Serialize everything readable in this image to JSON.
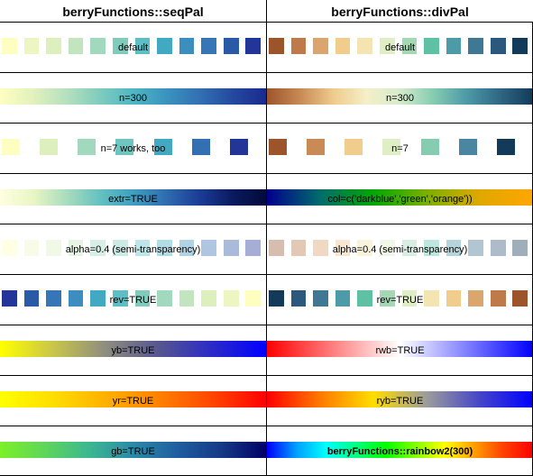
{
  "columns": [
    {
      "title": "berryFunctions::seqPal",
      "rows": [
        {
          "label": "default",
          "kind": "squares",
          "colors": [
            "#FEFEC0",
            "#EDF6C3",
            "#DCEFBD",
            "#C2E5BF",
            "#A2D9BE",
            "#7FCCBD",
            "#5DBFC5",
            "#42A9C3",
            "#3B8EBD",
            "#3675B6",
            "#2A5AA6",
            "#233598"
          ]
        },
        {
          "label": "n=300",
          "kind": "gradient",
          "colors": [
            "#FEFEC0",
            "#E2F1BE",
            "#B5E0BE",
            "#7FCCBD",
            "#4EB7C4",
            "#3A93BF",
            "#3270B3",
            "#24499F",
            "#1A2A8E"
          ]
        },
        {
          "label": "n=7 works, too",
          "kind": "squares",
          "colors": [
            "#FEFEC0",
            "#DCEFBD",
            "#A2D9BE",
            "#6DC6C0",
            "#42A9C3",
            "#3270B3",
            "#233598"
          ]
        },
        {
          "label": "extr=TRUE",
          "kind": "gradient",
          "colors": [
            "#FEFEE0",
            "#E9F6C4",
            "#A9DCBE",
            "#64C2C0",
            "#3E9FC1",
            "#2F6CB0",
            "#1B3C96",
            "#0A1A5F",
            "#020A3A"
          ]
        },
        {
          "label": "alpha=0.4 (semi-transparency)",
          "kind": "squares",
          "colors": [
            "#FFFFE6",
            "#F8FBE7",
            "#F1F8E5",
            "#E5F4E5",
            "#D7EFE5",
            "#CCEAE5",
            "#BEE5E7",
            "#B3DCE7",
            "#B0D2E4",
            "#AEC6E2",
            "#A9BADB",
            "#A6AED6"
          ]
        },
        {
          "label": "rev=TRUE",
          "kind": "squares",
          "colors": [
            "#233598",
            "#2A5AA6",
            "#3675B6",
            "#3B8EBD",
            "#42A9C3",
            "#5DBFC5",
            "#7FCCBD",
            "#A2D9BE",
            "#C2E5BF",
            "#DCEFBD",
            "#EDF6C3",
            "#FEFEC0"
          ]
        },
        {
          "label": "yb=TRUE",
          "kind": "gradient",
          "colors": [
            "#FFFF00",
            "#C9C54A",
            "#8C8C80",
            "#555590",
            "#2A2AC8",
            "#0000FF"
          ]
        },
        {
          "label": "yr=TRUE",
          "kind": "gradient",
          "colors": [
            "#FFFF00",
            "#FFDD00",
            "#FFB000",
            "#FF8000",
            "#FF4500",
            "#FF0000"
          ]
        },
        {
          "label": "gb=TRUE",
          "kind": "gradient",
          "colors": [
            "#7CF027",
            "#5FD65A",
            "#3CB890",
            "#2A8AA8",
            "#1F5EA0",
            "#153A86",
            "#000066"
          ]
        }
      ]
    },
    {
      "title": "berryFunctions::divPal",
      "rows": [
        {
          "label": "default",
          "kind": "squares",
          "colors": [
            "#9C552B",
            "#BF7A4B",
            "#DBA56E",
            "#F0CC8D",
            "#F3E4B1",
            "#E0EEC5",
            "#A6D7B5",
            "#5EC1A4",
            "#4D9AA8",
            "#3E7895",
            "#2D587E",
            "#133A59"
          ]
        },
        {
          "label": "n=300",
          "kind": "gradient",
          "colors": [
            "#9C552B",
            "#C98A55",
            "#EFCB8E",
            "#F5EFC8",
            "#D6EBCC",
            "#86CCB1",
            "#4D9AA8",
            "#2F6785",
            "#133A59"
          ]
        },
        {
          "label": "n=7",
          "kind": "squares",
          "colors": [
            "#9C552B",
            "#C98A55",
            "#F0CC8D",
            "#E0EEC5",
            "#86CCB1",
            "#4A86A2",
            "#133A59"
          ]
        },
        {
          "label": "col=c('darkblue','green','orange'))",
          "kind": "gradient",
          "colors": [
            "#00008B",
            "#006C6C",
            "#00A800",
            "#7AB000",
            "#E0A800",
            "#FFA500"
          ]
        },
        {
          "label": "alpha=0.4 (semi-transparency)",
          "kind": "squares",
          "colors": [
            "#D7BDAF",
            "#E3C8B5",
            "#F0D8C2",
            "#F7E7D0",
            "#F9F3DE",
            "#F1F7E6",
            "#D9EEE3",
            "#BCE6DE",
            "#B5D4DC",
            "#B1C6D2",
            "#AEBCC9",
            "#A0AEBC"
          ]
        },
        {
          "label": "rev=TRUE",
          "kind": "squares",
          "colors": [
            "#133A59",
            "#2D587E",
            "#3E7895",
            "#4D9AA8",
            "#5EC1A4",
            "#A6D7B5",
            "#E0EEC5",
            "#F3E4B1",
            "#F0CC8D",
            "#DBA56E",
            "#BF7A4B",
            "#9C552B"
          ]
        },
        {
          "label": "rwb=TRUE",
          "kind": "gradient",
          "colors": [
            "#FF0000",
            "#FF8080",
            "#FFFFFF",
            "#8080FF",
            "#0000FF"
          ]
        },
        {
          "label": "ryb=TRUE",
          "kind": "gradient",
          "colors": [
            "#FF0000",
            "#FF7A00",
            "#FFDD00",
            "#9C9C9C",
            "#4545C8",
            "#0000FF"
          ]
        },
        {
          "label": "berryFunctions::rainbow2(300)",
          "kind": "gradient",
          "bold": true,
          "colors": [
            "#0000FF",
            "#00A0FF",
            "#00FFFF",
            "#00FF80",
            "#00FF00",
            "#80FF00",
            "#FFFF00",
            "#FFA000",
            "#FF4000",
            "#FF0000"
          ]
        }
      ]
    }
  ]
}
